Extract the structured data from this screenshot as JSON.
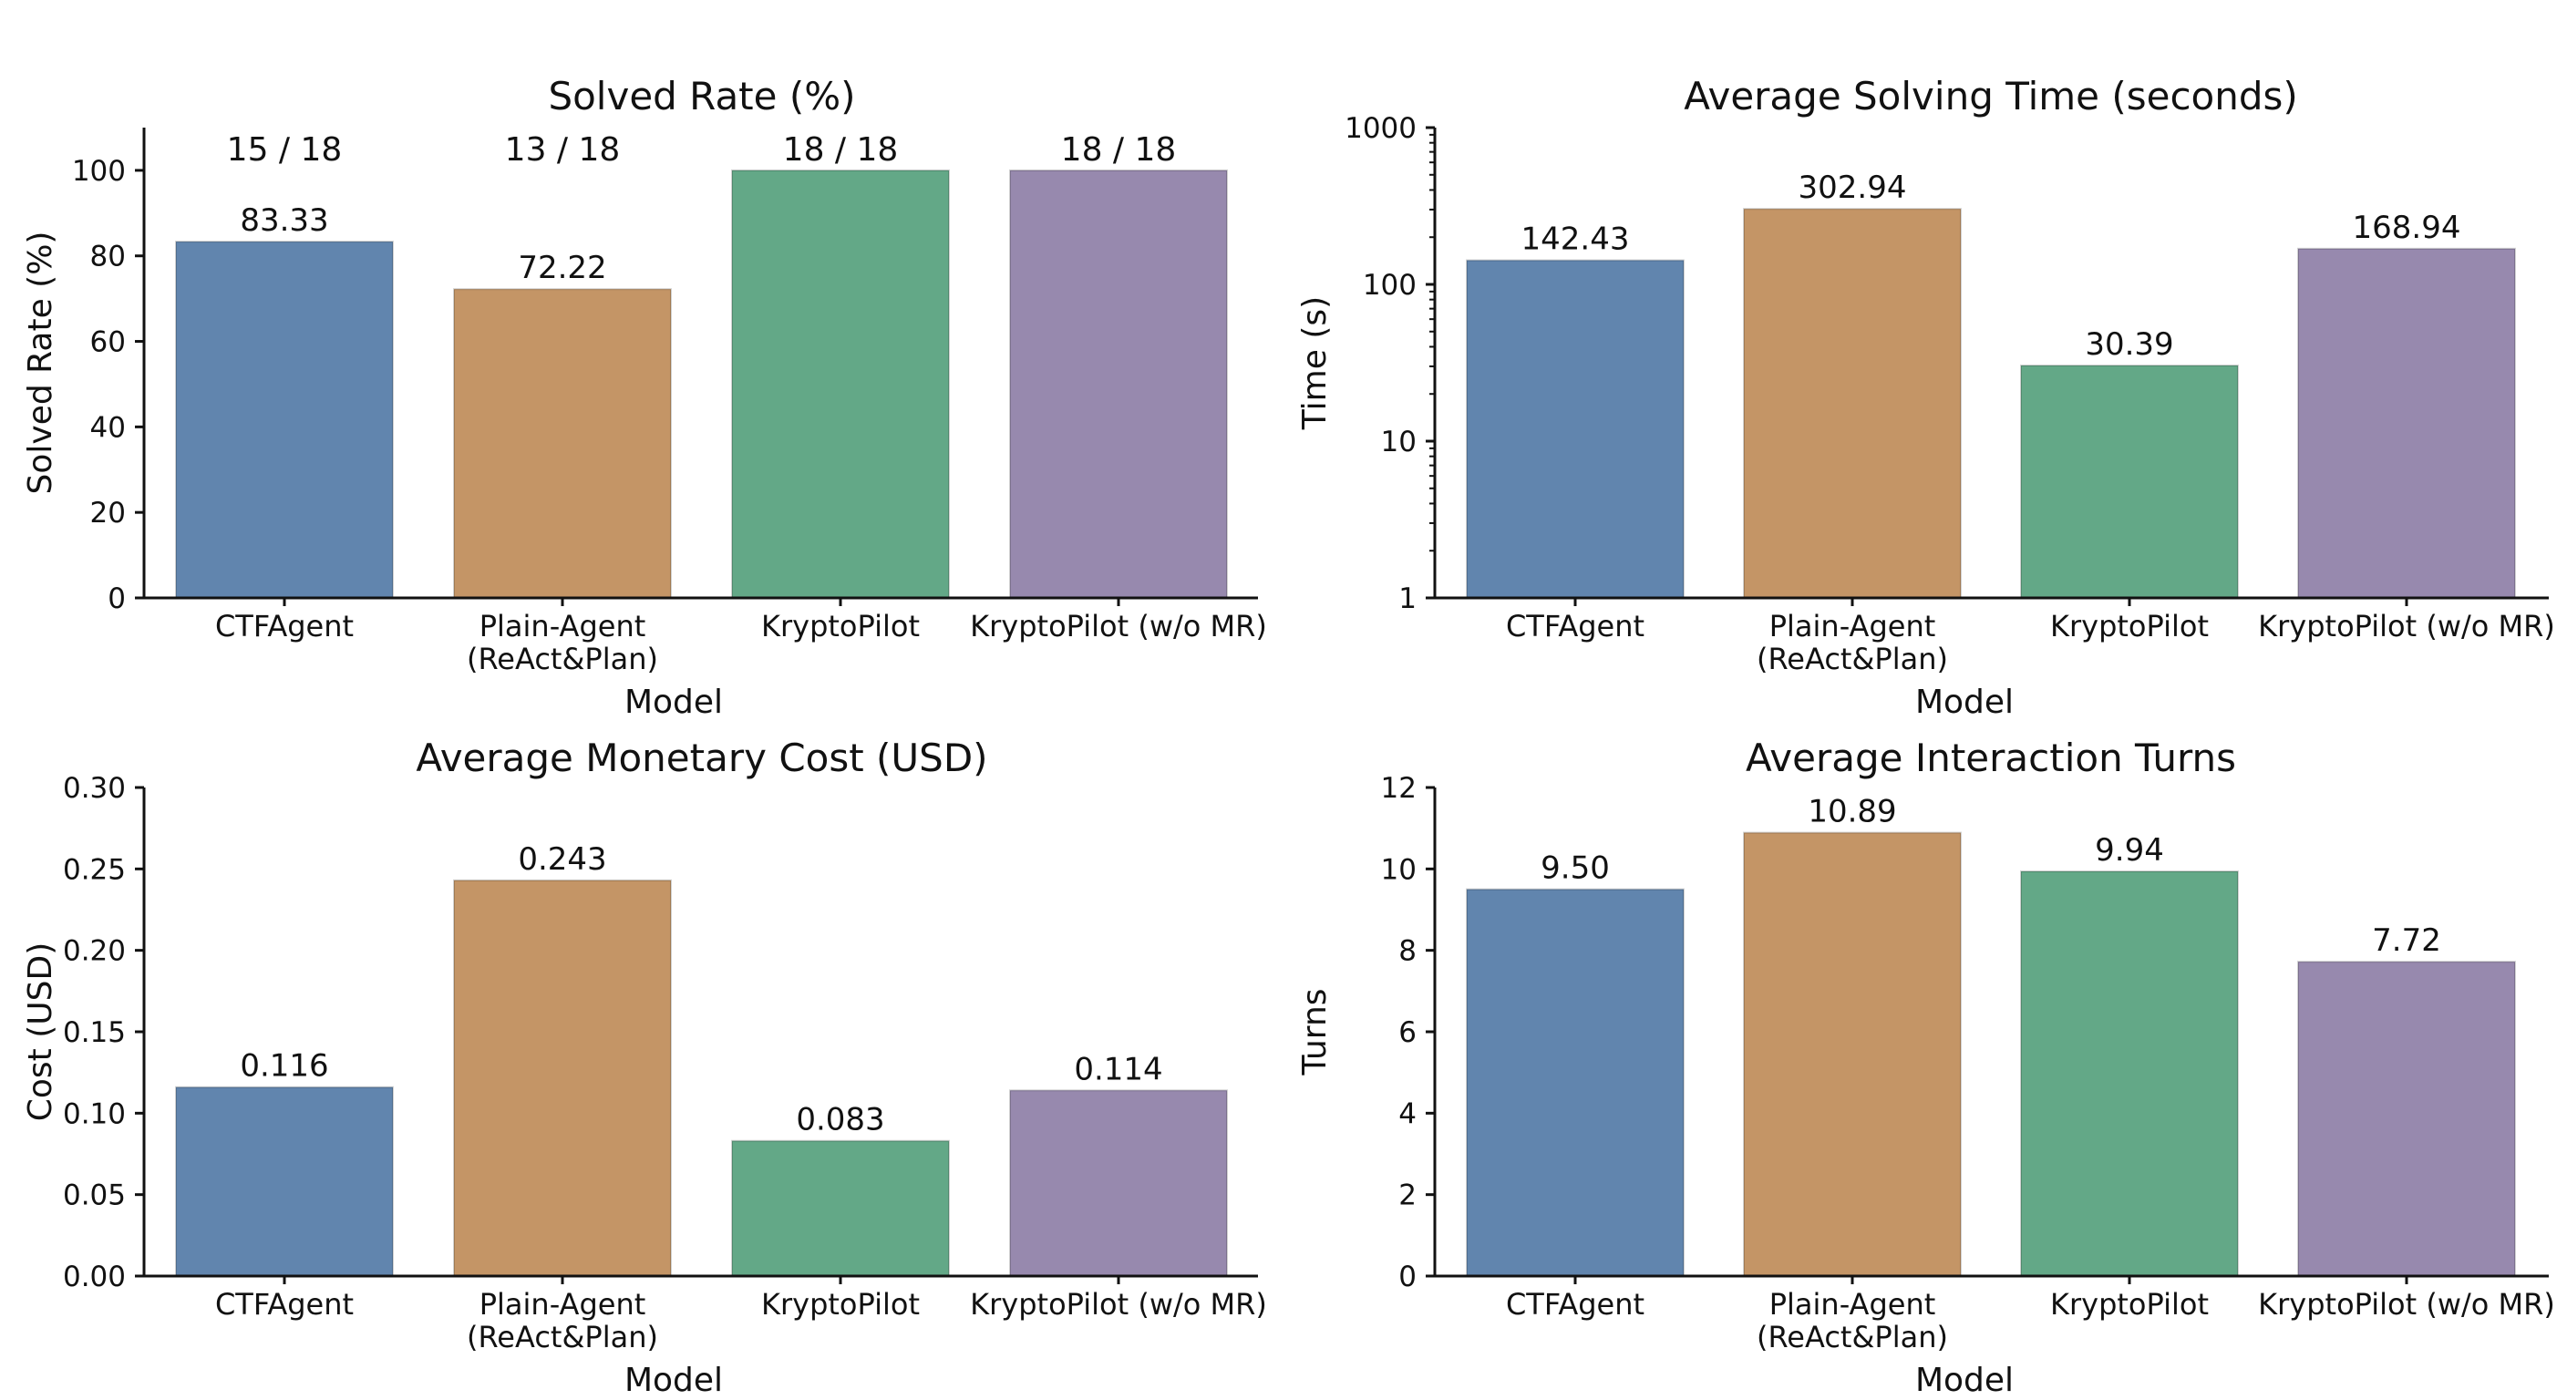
{
  "colors": {
    "series": [
      "#6185ae",
      "#c49566",
      "#63a887",
      "#9789ae"
    ]
  },
  "chart_data": [
    {
      "type": "bar",
      "title": "Solved Rate (%)",
      "xlabel": "Model",
      "ylabel": "Solved Rate (%)",
      "scale": "linear",
      "ylim": [
        0,
        110
      ],
      "yticks": [
        0,
        20,
        40,
        60,
        80,
        100
      ],
      "ytick_labels": [
        "0",
        "20",
        "40",
        "60",
        "80",
        "100"
      ],
      "categories": [
        [
          "CTFAgent"
        ],
        [
          "Plain-Agent",
          "(ReAct&Plan)"
        ],
        [
          "KryptoPilot"
        ],
        [
          "KryptoPilot (w/o MR)"
        ]
      ],
      "values": [
        83.33,
        72.22,
        100,
        100
      ],
      "value_labels": [
        "83.33",
        "72.22",
        "",
        ""
      ],
      "annotations": [
        "15 / 18",
        "13 / 18",
        "18 / 18",
        "18 / 18"
      ]
    },
    {
      "type": "bar",
      "title": "Average Solving Time (seconds)",
      "xlabel": "Model",
      "ylabel": "Time (s)",
      "scale": "log",
      "ylim": [
        1,
        1000
      ],
      "yticks": [
        1,
        10,
        100,
        1000
      ],
      "ytick_labels": [
        "1",
        "10",
        "100",
        "1000"
      ],
      "categories": [
        [
          "CTFAgent"
        ],
        [
          "Plain-Agent",
          "(ReAct&Plan)"
        ],
        [
          "KryptoPilot"
        ],
        [
          "KryptoPilot (w/o MR)"
        ]
      ],
      "values": [
        142.43,
        302.94,
        30.39,
        168.94
      ],
      "value_labels": [
        "142.43",
        "302.94",
        "30.39",
        "168.94"
      ],
      "annotations": []
    },
    {
      "type": "bar",
      "title": "Average Monetary Cost (USD)",
      "xlabel": "Model",
      "ylabel": "Cost (USD)",
      "scale": "linear",
      "ylim": [
        0,
        0.3
      ],
      "yticks": [
        0,
        0.05,
        0.1,
        0.15,
        0.2,
        0.25,
        0.3
      ],
      "ytick_labels": [
        "0.00",
        "0.05",
        "0.10",
        "0.15",
        "0.20",
        "0.25",
        "0.30"
      ],
      "categories": [
        [
          "CTFAgent"
        ],
        [
          "Plain-Agent",
          "(ReAct&Plan)"
        ],
        [
          "KryptoPilot"
        ],
        [
          "KryptoPilot (w/o MR)"
        ]
      ],
      "values": [
        0.116,
        0.243,
        0.083,
        0.114
      ],
      "value_labels": [
        "0.116",
        "0.243",
        "0.083",
        "0.114"
      ],
      "annotations": []
    },
    {
      "type": "bar",
      "title": "Average Interaction Turns",
      "xlabel": "Model",
      "ylabel": "Turns",
      "scale": "linear",
      "ylim": [
        0,
        12
      ],
      "yticks": [
        0,
        2,
        4,
        6,
        8,
        10,
        12
      ],
      "ytick_labels": [
        "0",
        "2",
        "4",
        "6",
        "8",
        "10",
        "12"
      ],
      "categories": [
        [
          "CTFAgent"
        ],
        [
          "Plain-Agent",
          "(ReAct&Plan)"
        ],
        [
          "KryptoPilot"
        ],
        [
          "KryptoPilot (w/o MR)"
        ]
      ],
      "values": [
        9.5,
        10.89,
        9.94,
        7.72
      ],
      "value_labels": [
        "9.50",
        "10.89",
        "9.94",
        "7.72"
      ],
      "annotations": []
    }
  ]
}
